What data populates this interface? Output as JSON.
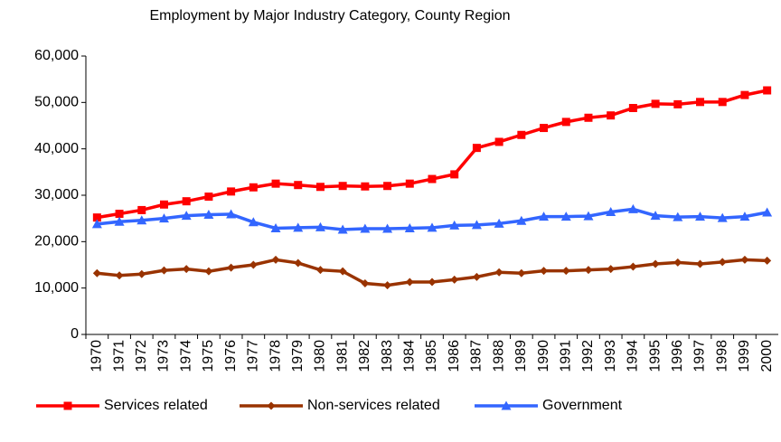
{
  "chart_data": {
    "type": "line",
    "title": "Employment by Major Industry Category, County Region",
    "categories": [
      "1970",
      "1971",
      "1972",
      "1973",
      "1974",
      "1975",
      "1976",
      "1977",
      "1978",
      "1979",
      "1980",
      "1981",
      "1982",
      "1983",
      "1984",
      "1985",
      "1986",
      "1987",
      "1988",
      "1989",
      "1990",
      "1991",
      "1992",
      "1993",
      "1994",
      "1995",
      "1996",
      "1997",
      "1998",
      "1999",
      "2000"
    ],
    "series": [
      {
        "name": "Services related",
        "color": "#ff0000",
        "marker": "square",
        "values": [
          25200,
          26000,
          26800,
          28000,
          28700,
          29700,
          30800,
          31700,
          32500,
          32200,
          31800,
          32000,
          31900,
          32000,
          32500,
          33500,
          34500,
          40200,
          41500,
          43000,
          44500,
          45800,
          46700,
          47200,
          48800,
          49700,
          49600,
          50100,
          50100,
          51600,
          52600
        ]
      },
      {
        "name": "Non-services related",
        "color": "#993300",
        "marker": "diamond",
        "values": [
          13200,
          12700,
          13000,
          13800,
          14100,
          13600,
          14400,
          15000,
          16100,
          15400,
          13900,
          13600,
          11000,
          10600,
          11300,
          11300,
          11800,
          12400,
          13400,
          13200,
          13700,
          13700,
          13900,
          14100,
          14600,
          15200,
          15500,
          15200,
          15600,
          16100,
          15900
        ]
      },
      {
        "name": "Government",
        "color": "#3366ff",
        "marker": "triangle",
        "values": [
          23800,
          24300,
          24600,
          25000,
          25600,
          25800,
          25900,
          24200,
          22900,
          23000,
          23100,
          22600,
          22800,
          22800,
          22900,
          23000,
          23500,
          23600,
          23900,
          24500,
          25400,
          25400,
          25500,
          26400,
          27000,
          25600,
          25300,
          25400,
          25100,
          25400,
          26300
        ]
      }
    ],
    "ylim": [
      0,
      60000
    ],
    "yticks": [
      0,
      {
        "value": 10000,
        "label": "10,000"
      },
      {
        "value": 20000,
        "label": "20,000"
      },
      {
        "value": 30000,
        "label": "30,000"
      },
      {
        "value": 40000,
        "label": "40,000"
      },
      {
        "value": 50000,
        "label": "50,000"
      },
      {
        "value": 60000,
        "label": "60,000"
      }
    ],
    "grid": false,
    "legend": "bottom"
  }
}
